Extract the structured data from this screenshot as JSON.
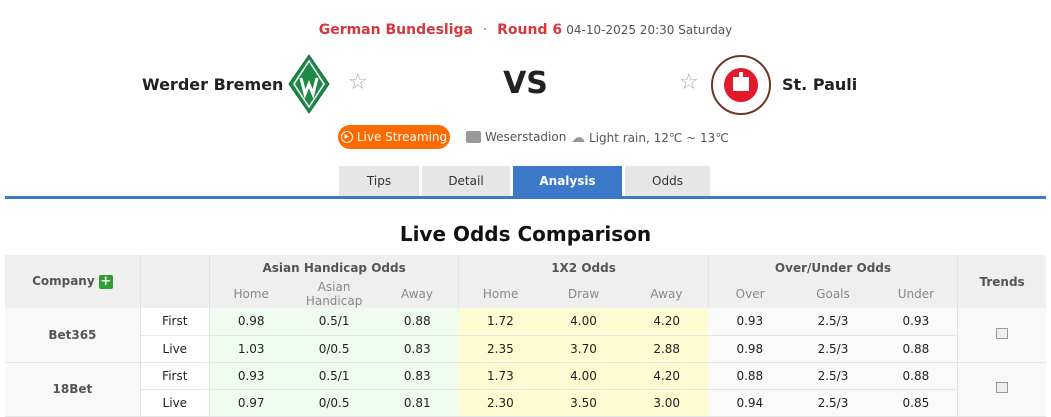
{
  "match": {
    "league": "German Bundesliga",
    "separator": "·",
    "round": "Round 6",
    "datetime": "04-10-2025 20:30 Saturday",
    "home": {
      "name": "Werder Bremen",
      "logo": "W"
    },
    "away": {
      "name": "St. Pauli",
      "logo": "FC ST. PAULI 1910"
    },
    "vs": "VS",
    "live_label": "Live Streaming",
    "venue": "Weserstadion",
    "weather": "Light rain, 12℃ ~ 13℃"
  },
  "tabs": [
    {
      "label": "Tips"
    },
    {
      "label": "Detail"
    },
    {
      "label": "Analysis",
      "active": true
    },
    {
      "label": "Odds"
    }
  ],
  "section_title": "Live Odds Comparison",
  "table": {
    "company_header": "Company",
    "groups": [
      "Asian Handicap Odds",
      "1X2 Odds",
      "Over/Under Odds"
    ],
    "trends_header": "Trends",
    "subheaders": [
      "Home",
      "Asian Handicap",
      "Away",
      "Home",
      "Draw",
      "Away",
      "Over",
      "Goals",
      "Under"
    ],
    "companies": [
      {
        "name": "Bet365",
        "rows": [
          {
            "type": "First",
            "values": [
              "0.98",
              "0.5/1",
              "0.88",
              "1.72",
              "4.00",
              "4.20",
              "0.93",
              "2.5/3",
              "0.93"
            ]
          },
          {
            "type": "Live",
            "values": [
              "1.03",
              "0/0.5",
              "0.83",
              "2.35",
              "3.70",
              "2.88",
              "0.98",
              "2.5/3",
              "0.88"
            ]
          }
        ]
      },
      {
        "name": "18Bet",
        "rows": [
          {
            "type": "First",
            "values": [
              "0.93",
              "0.5/1",
              "0.83",
              "1.73",
              "4.00",
              "4.20",
              "0.88",
              "2.5/3",
              "0.88"
            ]
          },
          {
            "type": "Live",
            "values": [
              "0.97",
              "0/0.5",
              "0.81",
              "2.30",
              "3.50",
              "3.00",
              "0.94",
              "2.5/3",
              "0.85"
            ]
          }
        ]
      }
    ]
  },
  "colors": {
    "accent": "#3d79c9",
    "league": "#d6373d",
    "live": "#ff6a00",
    "ah_bg": "#effbef",
    "x12_bg": "#fdfbd2"
  }
}
